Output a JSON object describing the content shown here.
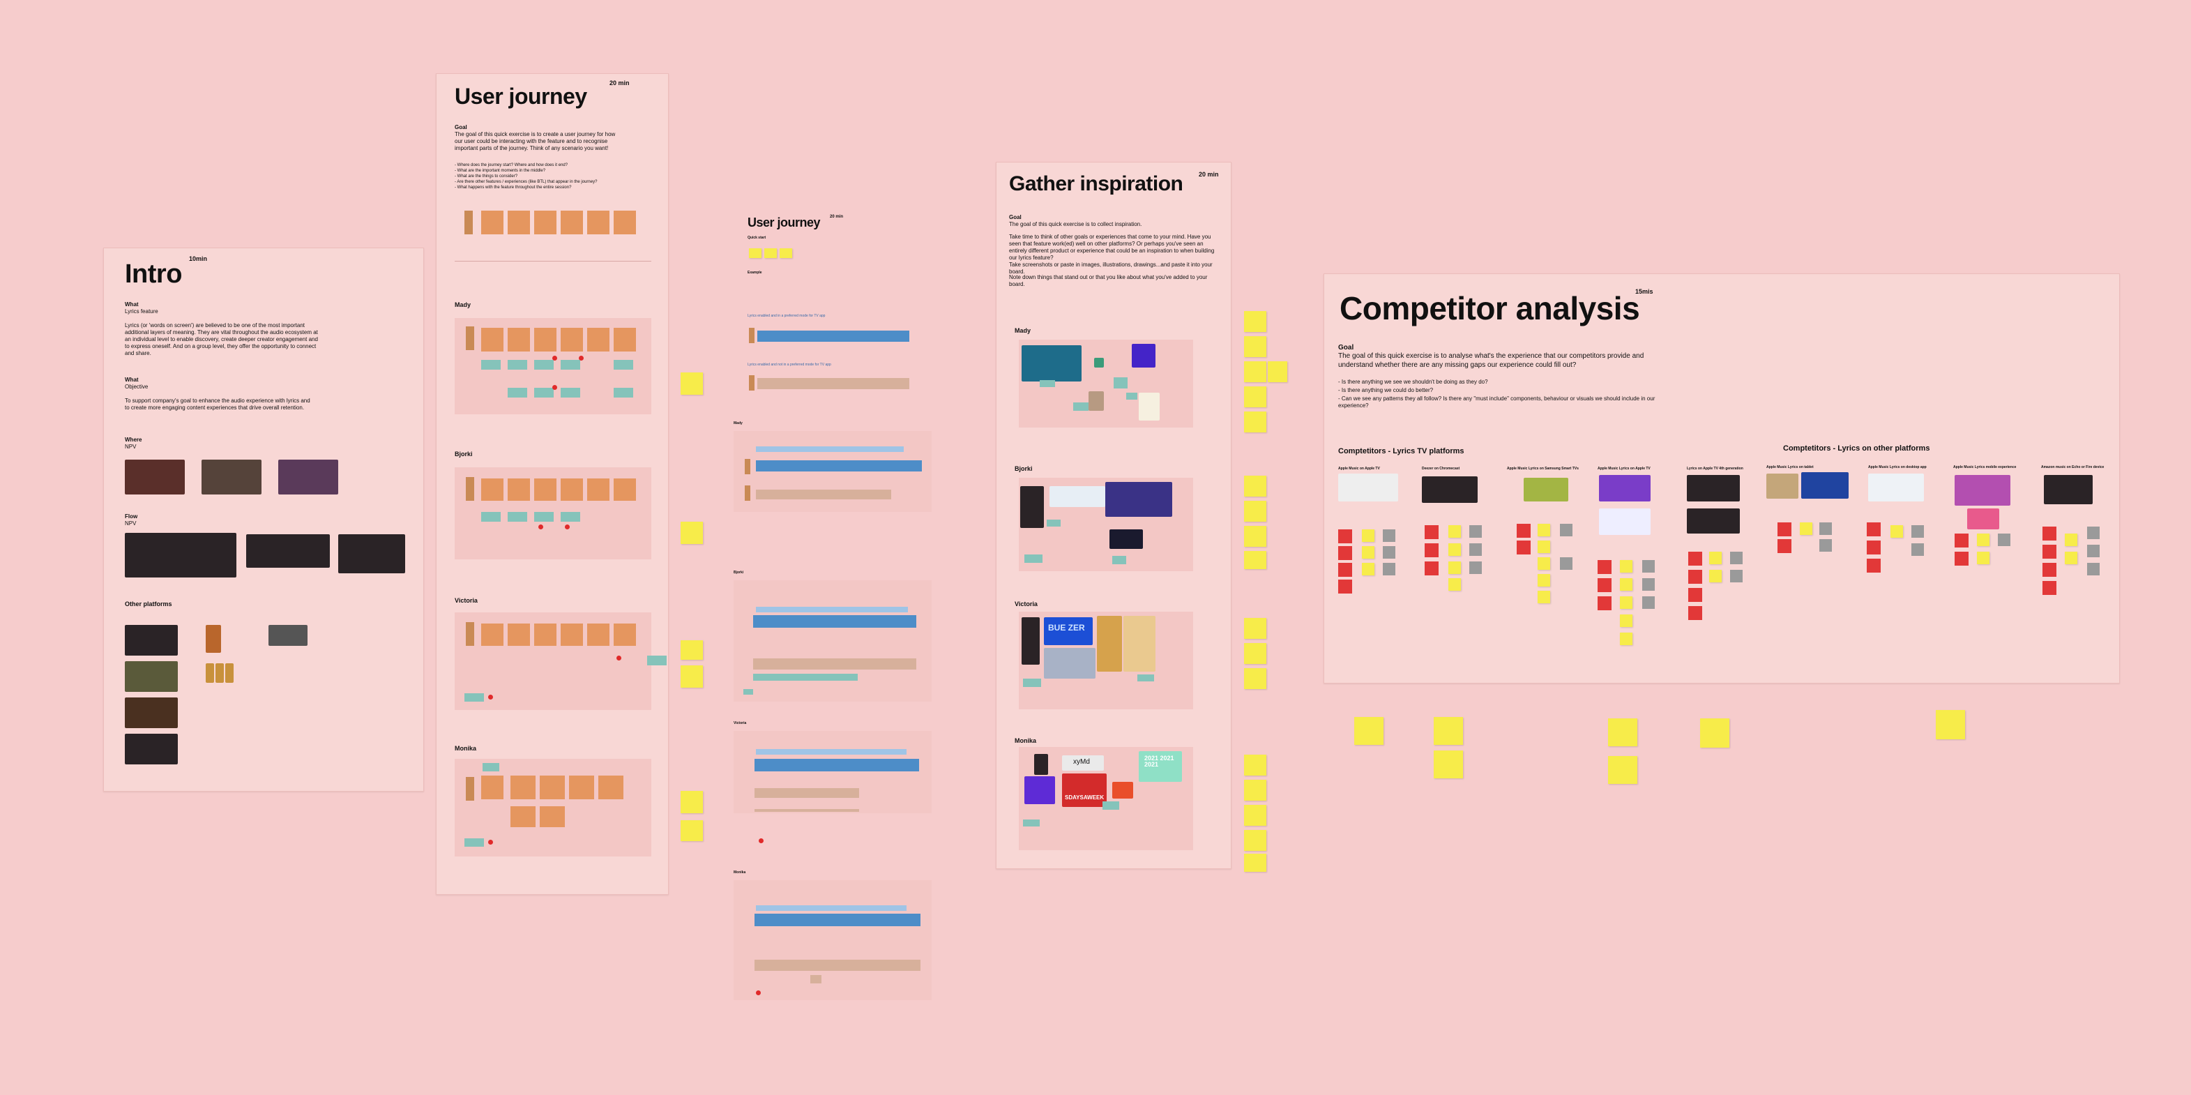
{
  "intro": {
    "title": "Intro",
    "duration": "10min",
    "what_label": "What",
    "what_value": "Lyrics feature",
    "what_body": "Lyrics (or 'words on screen') are believed to be one of the most important additional layers of meaning. They are vital throughout the audio ecosystem at an individual level to enable discovery, create deeper creator engagement and to express oneself. And on a group level, they offer the opportunity to connect and share.",
    "objective_label": "What",
    "objective_value": "Objective",
    "objective_body": "To support company's goal to enhance the audio experience with lyrics and to create more engaging content experiences that drive overall retention.",
    "where_label": "Where",
    "where_value": "NPV",
    "flow_label": "Flow",
    "flow_value": "NPV",
    "other_platforms": "Other platforms"
  },
  "user_journey": {
    "title": "User journey",
    "duration": "20 min",
    "goal_label": "Goal",
    "goal_body": "The goal of this quick exercise is to create a user journey for how our user could be interacting with the feature and to recognise important parts of the journey. Think of any scenario you want!",
    "questions": [
      "- Where does the journey start? Where and how does it end?",
      "- What are the important moments in the middle?",
      "- What are the things to consider?",
      "- Are there other features / experiences (like BTL) that appear in the journey?",
      "- What happens with the feature throughout the entire session?"
    ],
    "people": [
      "Mady",
      "Bjorki",
      "Victoria",
      "Monika"
    ]
  },
  "user_journey_2": {
    "title": "User journey",
    "duration": "20 min",
    "goal_label": "Quick start",
    "example_label": "Example",
    "row_label_1": "Lyrics enabled and in a preferred mode for TV app",
    "row_label_2": "Lyrics enabled and not in a preferred mode for TV app",
    "people": [
      "Mady",
      "Bjorki",
      "Victoria",
      "Monika"
    ]
  },
  "gather": {
    "title": "Gather inspiration",
    "duration": "20 min",
    "goal_label": "Goal",
    "goal_body": "The goal of this quick exercise is to collect inspiration.",
    "para1": "Take time to think of other goals or experiences that come to your mind. Have you seen that feature work(ed) well on other platforms? Or perhaps you've seen an entirely different product or experience that could be an inspiration to when building our lyrics feature?",
    "para2": "Take screenshots or paste in images, illustrations, drawings...and paste it into your board.",
    "para3": "Note down things that stand out or that you like about what you've added to your board.",
    "people": [
      "Mady",
      "Bjorki",
      "Victoria",
      "Monika"
    ],
    "img_text_1": "BUE ZER",
    "img_text_2": "xyMd",
    "img_text_3": "2021 2021 2021",
    "img_text_4": "SDAYSAWEEK"
  },
  "competitor": {
    "title": "Competitor analysis",
    "duration": "15mis",
    "goal_label": "Goal",
    "goal_body": "The goal of this quick exercise is to analyse what's the experience that our competitors provide and understand whether there are any missing gaps our experience could fill out?",
    "questions": [
      "- Is there anything we see we shouldn't be doing as they do?",
      "- Is there anything we could do better?",
      "- Can we see any patterns they all follow? Is there any \"must include\" components, behaviour or visuals we should include in our experience?"
    ],
    "tv_heading": "Comptetitors - Lyrics TV platforms",
    "other_heading": "Comptetitors - Lyrics on other platforms",
    "tv_platforms": [
      "Apple Music on Apple TV",
      "Deezer on Chromecast",
      "Apple Music Lyrics on Samsung Smart TVs",
      "Apple Music Lyrics on Apple TV",
      "Lyrics on Apple TV 4th generation"
    ],
    "other_platforms": [
      "Apple Music Lyrics on tablet",
      "Apple Music Lyrics on desktop app",
      "Apple Music Lyrics mobile experience",
      "Amazon music on Echo or Fire device"
    ]
  }
}
